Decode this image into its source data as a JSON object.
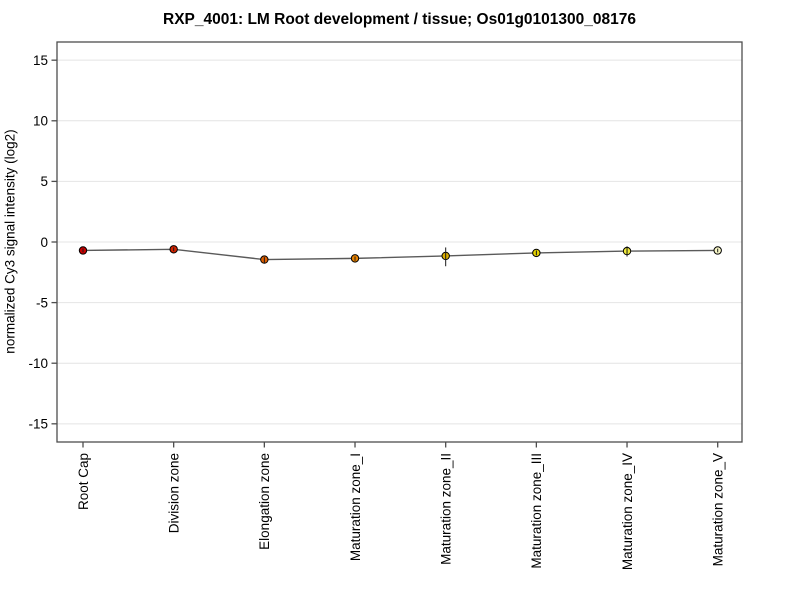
{
  "chart_data": {
    "type": "line",
    "title": "RXP_4001: LM Root development / tissue; Os01g0101300_08176",
    "xlabel": "",
    "ylabel": "normalized Cy3 signal intensity (log2)",
    "categories": [
      "Root Cap",
      "Division zone",
      "Elongation zone",
      "Maturation zone_I",
      "Maturation zone_II",
      "Maturation zone_III",
      "Maturation zone_IV",
      "Maturation zone_V"
    ],
    "values": [
      -0.7,
      -0.6,
      -1.45,
      -1.35,
      -1.15,
      -0.9,
      -0.75,
      -0.7
    ],
    "err_low": [
      0.15,
      0.15,
      0.3,
      0.2,
      0.85,
      0.2,
      0.45,
      0.15
    ],
    "err_high": [
      0.15,
      0.15,
      0.2,
      0.15,
      0.7,
      0.2,
      0.4,
      0.15
    ],
    "point_colors": [
      "#c80000",
      "#d32300",
      "#df5f00",
      "#e88200",
      "#dbae00",
      "#e6d300",
      "#efe93a",
      "#f7f6c6"
    ],
    "ylim": [
      -16.5,
      16.5
    ],
    "yticks": [
      15,
      10,
      5,
      0,
      -5,
      -10,
      -15
    ],
    "grid": true,
    "legend": "none",
    "line_color": "#5a5a5a",
    "marker_outline": "#000000",
    "error_bar_color": "#1a1a1a",
    "frame_color": "#4d4d4d",
    "grid_color": "#e4e4e4",
    "background_color": "#ffffff"
  }
}
